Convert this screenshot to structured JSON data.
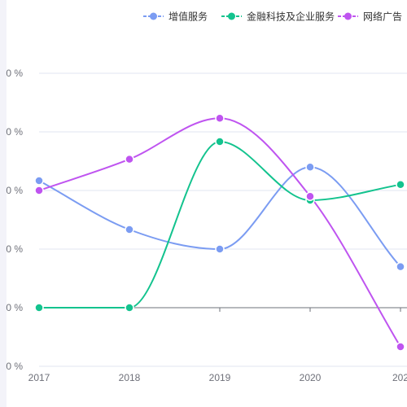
{
  "chart_data": {
    "type": "line",
    "title": "",
    "xlabel": "",
    "ylabel": "",
    "x": [
      "2017",
      "2018",
      "2019",
      "2020",
      "202"
    ],
    "ylim": [
      -60,
      90
    ],
    "y_ticks": [
      "0 %",
      "0 %",
      "0 %",
      "0 %",
      "0 %",
      "0 %"
    ],
    "legend_position": "top-right",
    "smooth": true,
    "grid": true,
    "series": [
      {
        "name": "增值服务",
        "color": "#7b9cf2",
        "values": [
          35,
          10,
          0,
          42,
          -9
        ]
      },
      {
        "name": "金融科技及企业服务",
        "color": "#13c38e",
        "values": [
          -30,
          -30,
          55,
          25,
          33
        ]
      },
      {
        "name": "网络广告",
        "color": "#bf54f0",
        "values": [
          30,
          46,
          67,
          27,
          -50
        ]
      }
    ]
  }
}
